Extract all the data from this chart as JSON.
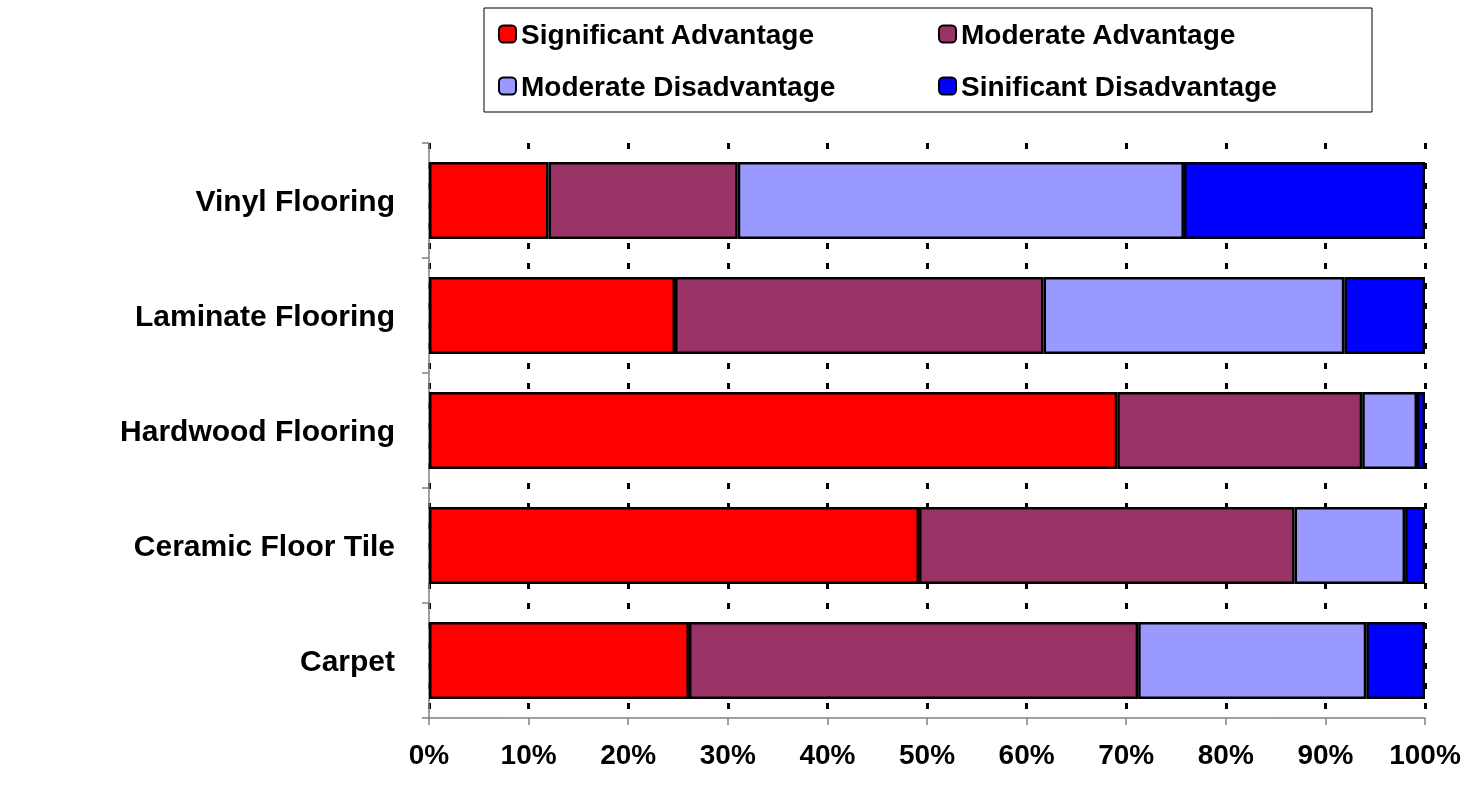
{
  "chart_data": {
    "type": "bar",
    "orientation": "horizontal",
    "stacked": true,
    "categories": [
      "Vinyl Flooring",
      "Laminate Flooring",
      "Hardwood Flooring",
      "Ceramic Floor Tile",
      "Carpet"
    ],
    "series": [
      {
        "name": "Significant Advantage",
        "color": "#ff0000",
        "values": [
          12.0,
          24.7,
          69.1,
          49.2,
          26.1
        ]
      },
      {
        "name": "Moderate Advantage",
        "color": "#993366",
        "values": [
          19.0,
          37.0,
          24.6,
          37.7,
          45.1
        ]
      },
      {
        "name": "Moderate Disadvantage",
        "color": "#9999ff",
        "values": [
          44.8,
          30.2,
          5.5,
          11.1,
          22.9
        ]
      },
      {
        "name": "Sinificant Disadvantage",
        "color": "#0000ff",
        "values": [
          24.2,
          8.1,
          0.8,
          2.0,
          5.9
        ]
      }
    ],
    "xlim": [
      0,
      100
    ],
    "xticks": [
      {
        "value": 0,
        "label": "0%"
      },
      {
        "value": 10,
        "label": "10%"
      },
      {
        "value": 20,
        "label": "20%"
      },
      {
        "value": 30,
        "label": "30%"
      },
      {
        "value": 40,
        "label": "40%"
      },
      {
        "value": 50,
        "label": "50%"
      },
      {
        "value": 60,
        "label": "60%"
      },
      {
        "value": 70,
        "label": "70%"
      },
      {
        "value": 80,
        "label": "80%"
      },
      {
        "value": 90,
        "label": "90%"
      },
      {
        "value": 100,
        "label": "100%"
      }
    ],
    "grid": "x",
    "legend": "top"
  }
}
